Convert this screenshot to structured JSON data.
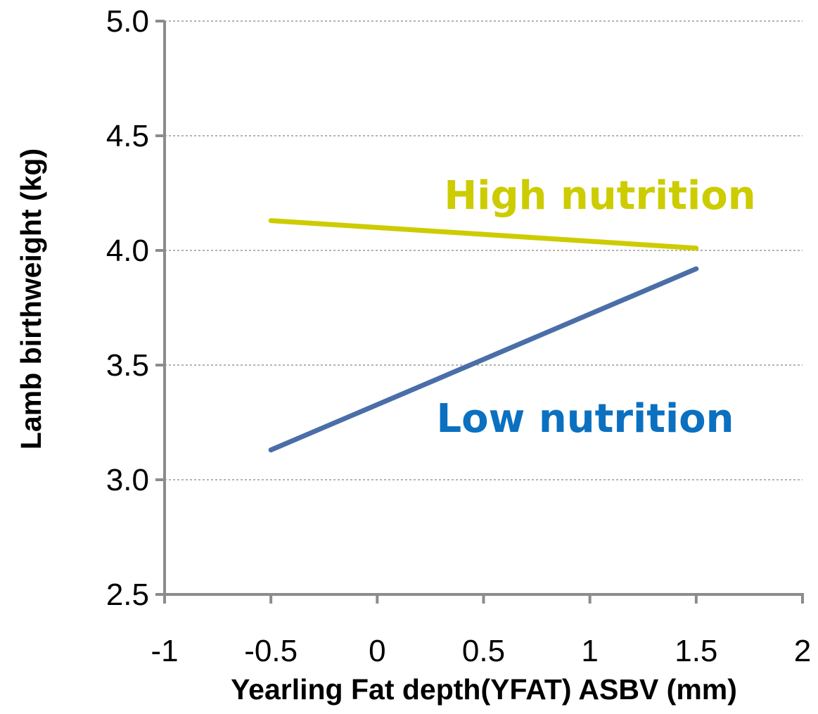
{
  "chart_data": {
    "type": "line",
    "title": "",
    "xlabel": "Yearling Fat depth(YFAT) ASBV (mm)",
    "ylabel": "Lamb birthweight (kg)",
    "xlim": [
      -1,
      2
    ],
    "ylim": [
      2.5,
      5.0
    ],
    "x_ticks": [
      "-1",
      "-0.5",
      "0",
      "0.5",
      "1",
      "1.5",
      "2"
    ],
    "y_ticks": [
      "2.5",
      "3.0",
      "3.5",
      "4.0",
      "4.5",
      "5.0"
    ],
    "grid": "horizontal dotted",
    "legend": "none",
    "series": [
      {
        "name": "High nutrition",
        "color": "#cccc00",
        "x": [
          -0.5,
          1.5
        ],
        "values": [
          4.13,
          4.01
        ]
      },
      {
        "name": "Low nutrition",
        "color": "#4a6ea8",
        "label_color": "#0b70c0",
        "x": [
          -0.5,
          1.5
        ],
        "values": [
          3.13,
          3.92
        ]
      }
    ]
  }
}
